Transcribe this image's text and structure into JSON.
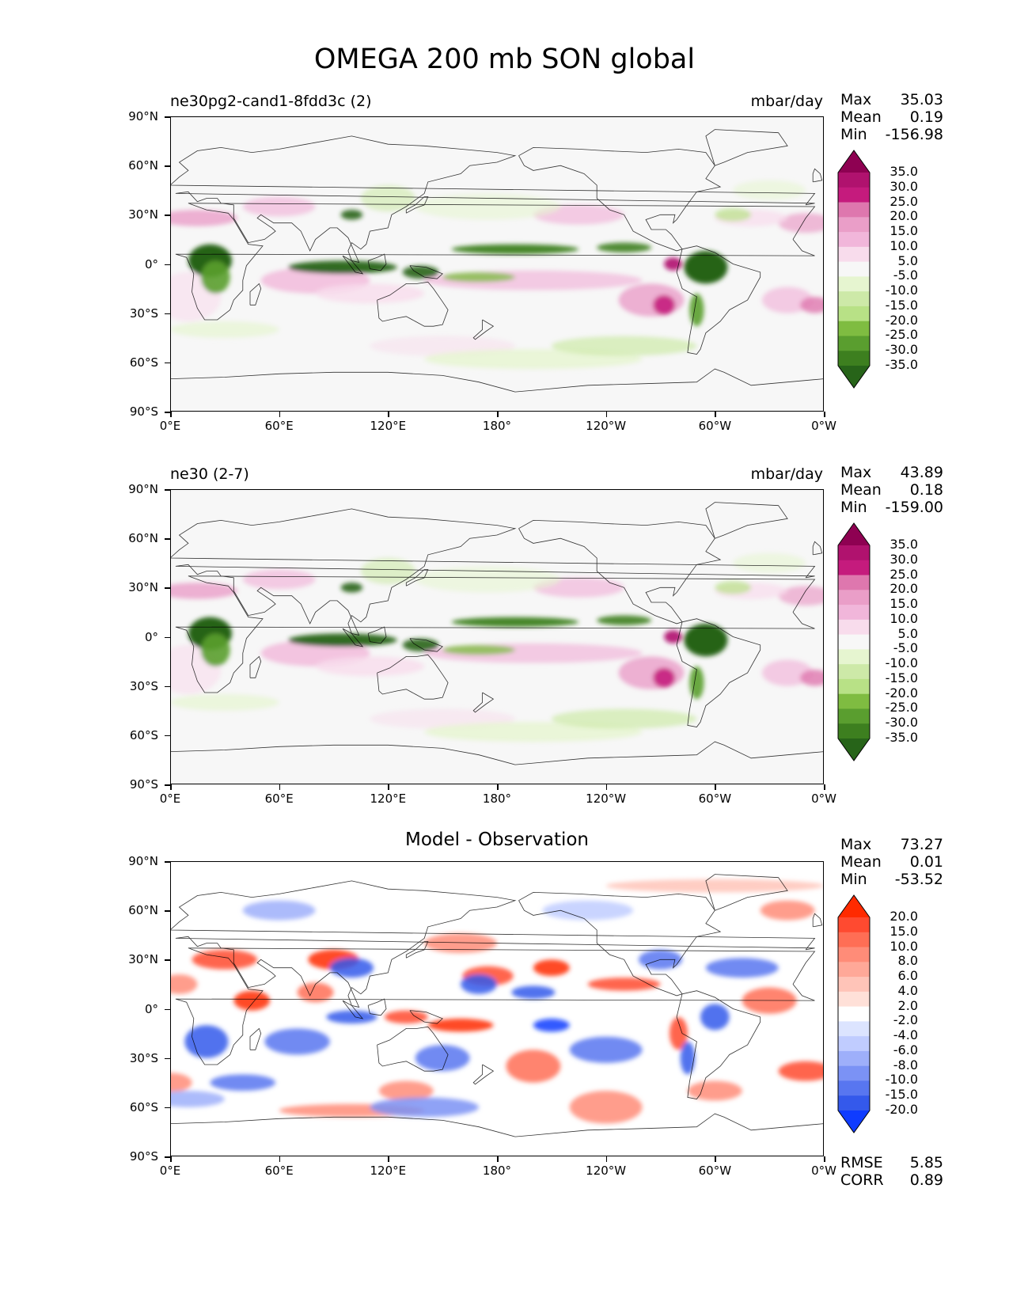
{
  "page_title": "OMEGA 200 mb SON global",
  "chart_data": [
    {
      "type": "heatmap",
      "title": "ne30pg2-cand1-8fdd3c (2)",
      "units": "mbar/day",
      "stats": [
        {
          "label": "Max",
          "value": "35.03"
        },
        {
          "label": "Mean",
          "value": "0.19"
        },
        {
          "label": "Min",
          "value": "-156.98"
        }
      ],
      "lat_ticks": [
        "90°N",
        "60°N",
        "30°N",
        "0°",
        "30°S",
        "60°S",
        "90°S"
      ],
      "lon_ticks": [
        "0°E",
        "60°E",
        "120°E",
        "180°",
        "120°W",
        "60°W",
        "0°W"
      ],
      "xlim": [
        0,
        360
      ],
      "ylim": [
        -90,
        90
      ],
      "colorbar_levels": [
        "35.0",
        "30.0",
        "25.0",
        "20.0",
        "15.0",
        "10.0",
        "5.0",
        "-5.0",
        "-10.0",
        "-15.0",
        "-20.0",
        "-25.0",
        "-30.0",
        "-35.0"
      ],
      "colormap": "PiYG_r"
    },
    {
      "type": "heatmap",
      "title": "ne30 (2-7)",
      "units": "mbar/day",
      "stats": [
        {
          "label": "Max",
          "value": "43.89"
        },
        {
          "label": "Mean",
          "value": "0.18"
        },
        {
          "label": "Min",
          "value": "-159.00"
        }
      ],
      "lat_ticks": [
        "90°N",
        "60°N",
        "30°N",
        "0°",
        "30°S",
        "60°S",
        "90°S"
      ],
      "lon_ticks": [
        "0°E",
        "60°E",
        "120°E",
        "180°",
        "120°W",
        "60°W",
        "0°W"
      ],
      "xlim": [
        0,
        360
      ],
      "ylim": [
        -90,
        90
      ],
      "colorbar_levels": [
        "35.0",
        "30.0",
        "25.0",
        "20.0",
        "15.0",
        "10.0",
        "5.0",
        "-5.0",
        "-10.0",
        "-15.0",
        "-20.0",
        "-25.0",
        "-30.0",
        "-35.0"
      ],
      "colormap": "PiYG_r"
    },
    {
      "type": "heatmap",
      "title": "Model - Observation",
      "stats": [
        {
          "label": "Max",
          "value": "73.27"
        },
        {
          "label": "Mean",
          "value": "0.01"
        },
        {
          "label": "Min",
          "value": "-53.52"
        }
      ],
      "metrics": [
        {
          "label": "RMSE",
          "value": "5.85"
        },
        {
          "label": "CORR",
          "value": "0.89"
        }
      ],
      "lat_ticks": [
        "90°N",
        "60°N",
        "30°N",
        "0°",
        "30°S",
        "60°S",
        "90°S"
      ],
      "lon_ticks": [
        "0°E",
        "60°E",
        "120°E",
        "180°",
        "120°W",
        "60°W",
        "0°W"
      ],
      "xlim": [
        0,
        360
      ],
      "ylim": [
        -90,
        90
      ],
      "colorbar_levels": [
        "20.0",
        "15.0",
        "10.0",
        "8.0",
        "6.0",
        "4.0",
        "2.0",
        "-2.0",
        "-4.0",
        "-6.0",
        "-8.0",
        "-10.0",
        "-15.0",
        "-20.0"
      ],
      "colormap": "bwr"
    }
  ],
  "colors": {
    "piyg": [
      "#8e0152",
      "#b0126e",
      "#c51b7d",
      "#de77ae",
      "#ea9ec8",
      "#f1b6da",
      "#f8dcec",
      "#f7f7f7",
      "#e6f5d0",
      "#cde9a8",
      "#b8e186",
      "#7fbc41",
      "#5a9e2f",
      "#3d7f1f",
      "#276419"
    ],
    "bwr": [
      "#ff2a00",
      "#ff4a30",
      "#ff6e55",
      "#ff8c78",
      "#ffa898",
      "#ffc4b8",
      "#ffe0d8",
      "#ffffff",
      "#dce4ff",
      "#c0ccff",
      "#9eaffa",
      "#7b92f5",
      "#5876f0",
      "#3459eb",
      "#0f3cff"
    ]
  }
}
